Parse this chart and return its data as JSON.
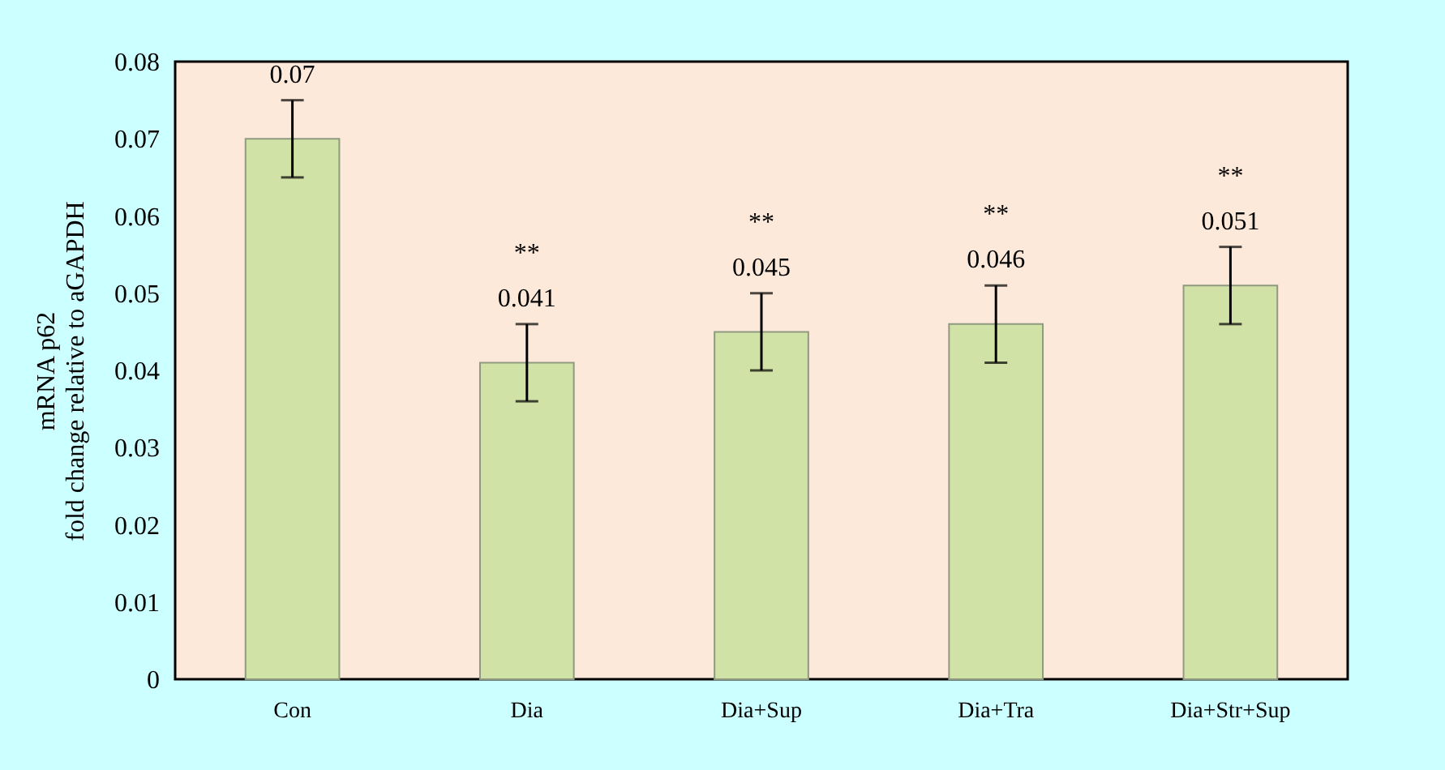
{
  "chart_data": {
    "type": "bar",
    "ylabel": "mRNA p62\nfold change relative  to aGAPDH",
    "categories": [
      "Con",
      "Dia",
      "Dia+Sup",
      "Dia+Tra",
      "Dia+Str+Sup"
    ],
    "values": [
      0.07,
      0.041,
      0.045,
      0.046,
      0.051
    ],
    "errors": [
      0.005,
      0.005,
      0.005,
      0.005,
      0.005
    ],
    "color": "#d1e2a6",
    "data_labels": true,
    "ylim": [
      0,
      0.08
    ],
    "yticks": [
      {
        "value": 0,
        "label": "0"
      },
      0.01,
      0.02,
      0.03,
      0.04,
      0.05,
      0.06,
      0.07,
      0.08
    ],
    "grid": false,
    "annotations": [
      "**",
      "**",
      "**",
      "**"
    ]
  }
}
